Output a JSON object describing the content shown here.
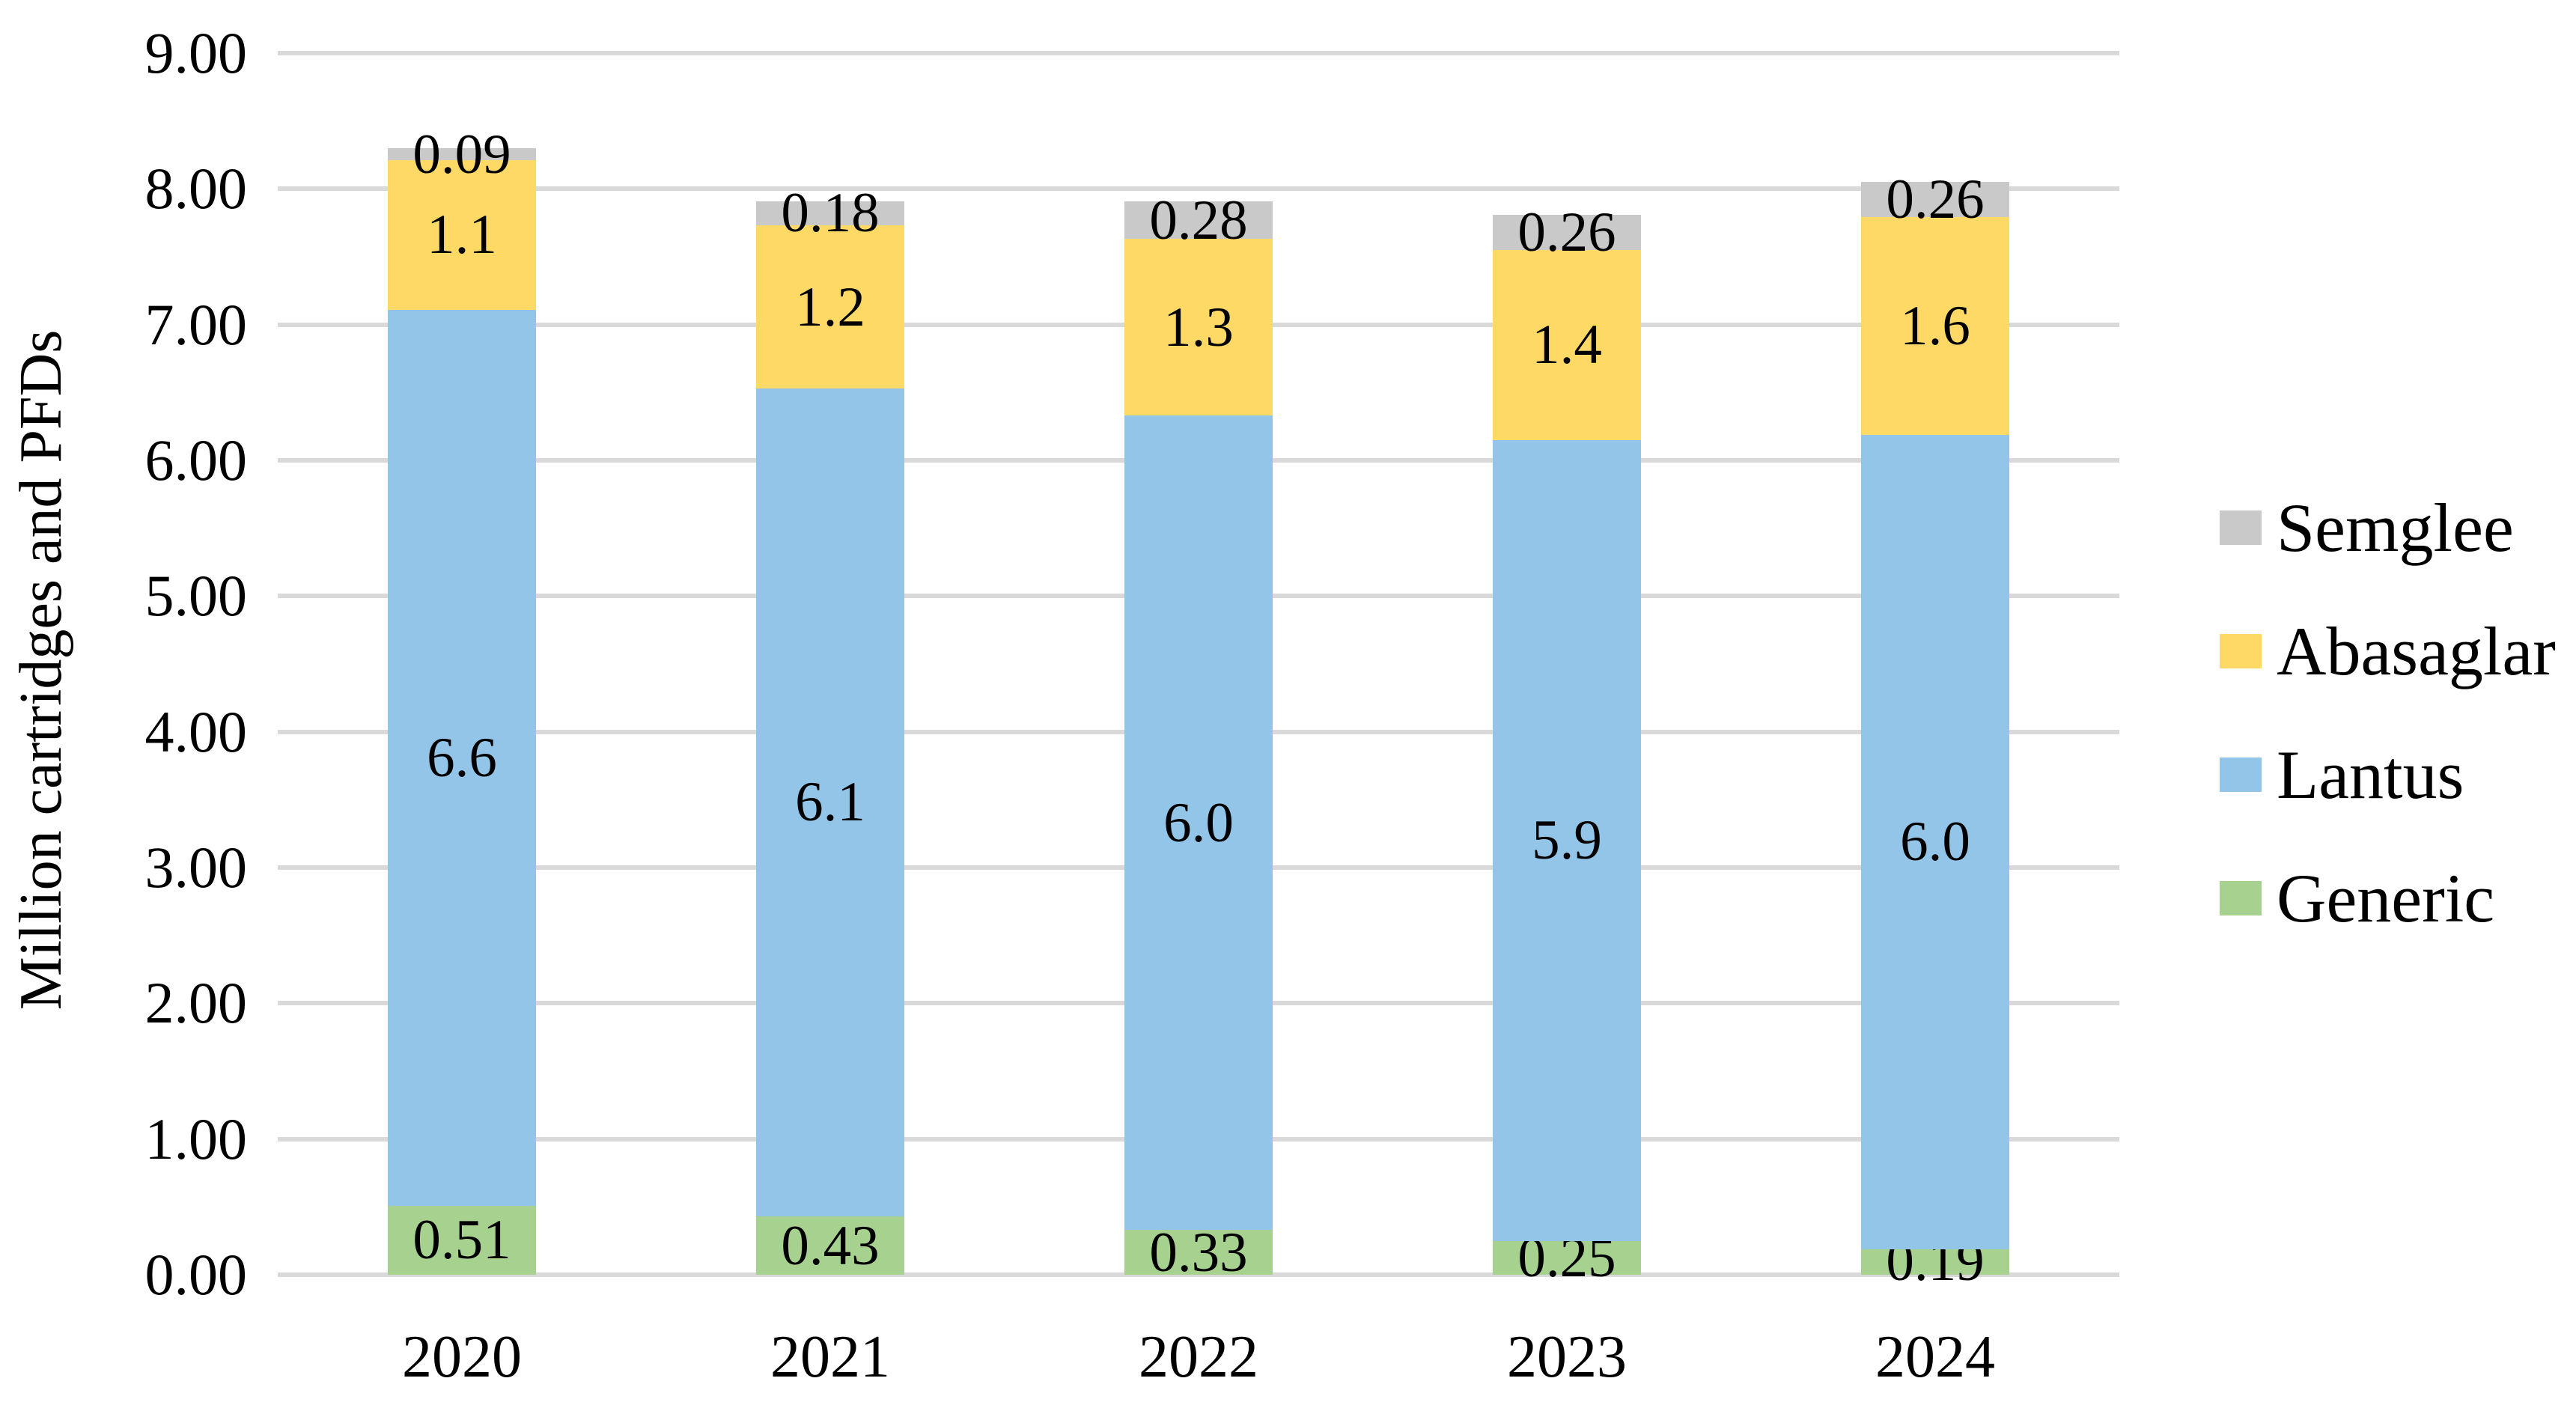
{
  "figure": {
    "background": "#FFFFFF",
    "text_color": "#000000",
    "gridline_color": "#D9D9D9"
  },
  "chart_data": {
    "type": "bar",
    "stacked": true,
    "title": "",
    "ylabel": "Million cartridges and PFDs",
    "xlabel": "",
    "ylim": [
      0,
      9
    ],
    "ytick_step": 1,
    "grid": true,
    "legend_position": "right",
    "categories": [
      "2020",
      "2021",
      "2022",
      "2023",
      "2024"
    ],
    "series": [
      {
        "name": "Generic",
        "color": "#A6D18E",
        "values": [
          0.51,
          0.43,
          0.33,
          0.25,
          0.19
        ],
        "labels": [
          "0.51",
          "0.43",
          "0.33",
          "0.25",
          "0.19"
        ]
      },
      {
        "name": "Lantus",
        "color": "#92C5E8",
        "values": [
          6.6,
          6.1,
          6.0,
          5.9,
          6.0
        ],
        "labels": [
          "6.6",
          "6.1",
          "6.0",
          "5.9",
          "6.0"
        ]
      },
      {
        "name": "Abasaglar",
        "color": "#FFD966",
        "values": [
          1.1,
          1.2,
          1.3,
          1.4,
          1.6
        ],
        "labels": [
          "1.1",
          "1.2",
          "1.3",
          "1.4",
          "1.6"
        ]
      },
      {
        "name": "Semglee",
        "color": "#C9C9C9",
        "values": [
          0.09,
          0.18,
          0.28,
          0.26,
          0.26
        ],
        "labels": [
          "0.09",
          "0.18",
          "0.28",
          "0.26",
          "0.26"
        ]
      }
    ]
  },
  "y_axis": {
    "tick_labels": [
      "0.00",
      "1.00",
      "2.00",
      "3.00",
      "4.00",
      "5.00",
      "6.00",
      "7.00",
      "8.00",
      "9.00"
    ]
  },
  "legend": {
    "items": [
      {
        "label": "Semglee",
        "color": "#C9C9C9"
      },
      {
        "label": "Abasaglar",
        "color": "#FFD966"
      },
      {
        "label": "Lantus",
        "color": "#92C5E8"
      },
      {
        "label": "Generic",
        "color": "#A6D18E"
      }
    ]
  }
}
